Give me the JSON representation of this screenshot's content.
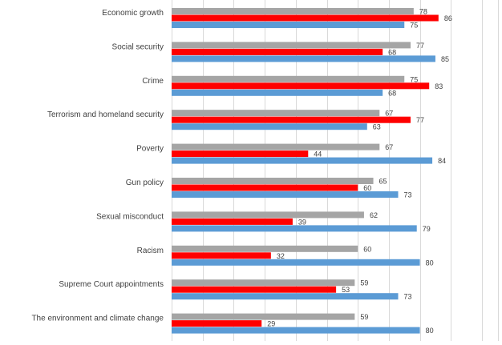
{
  "chart_data": {
    "type": "bar",
    "orientation": "horizontal",
    "categories": [
      "Economic growth",
      "Social security",
      "Crime",
      "Terrorism and homeland security",
      "Poverty",
      "Gun policy",
      "Sexual misconduct",
      "Racism",
      "Supreme Court appointments",
      "The environment and climate change"
    ],
    "series": [
      {
        "color": "#a5a5a5",
        "values": [
          78,
          77,
          75,
          67,
          67,
          65,
          62,
          60,
          59,
          59
        ]
      },
      {
        "color": "#ff0000",
        "values": [
          86,
          68,
          83,
          77,
          44,
          60,
          39,
          32,
          53,
          29
        ]
      },
      {
        "color": "#5b9bd5",
        "values": [
          75,
          85,
          68,
          63,
          84,
          73,
          79,
          80,
          73,
          80
        ]
      }
    ],
    "xlim": [
      0,
      100
    ],
    "grid": true,
    "legend": "none"
  }
}
